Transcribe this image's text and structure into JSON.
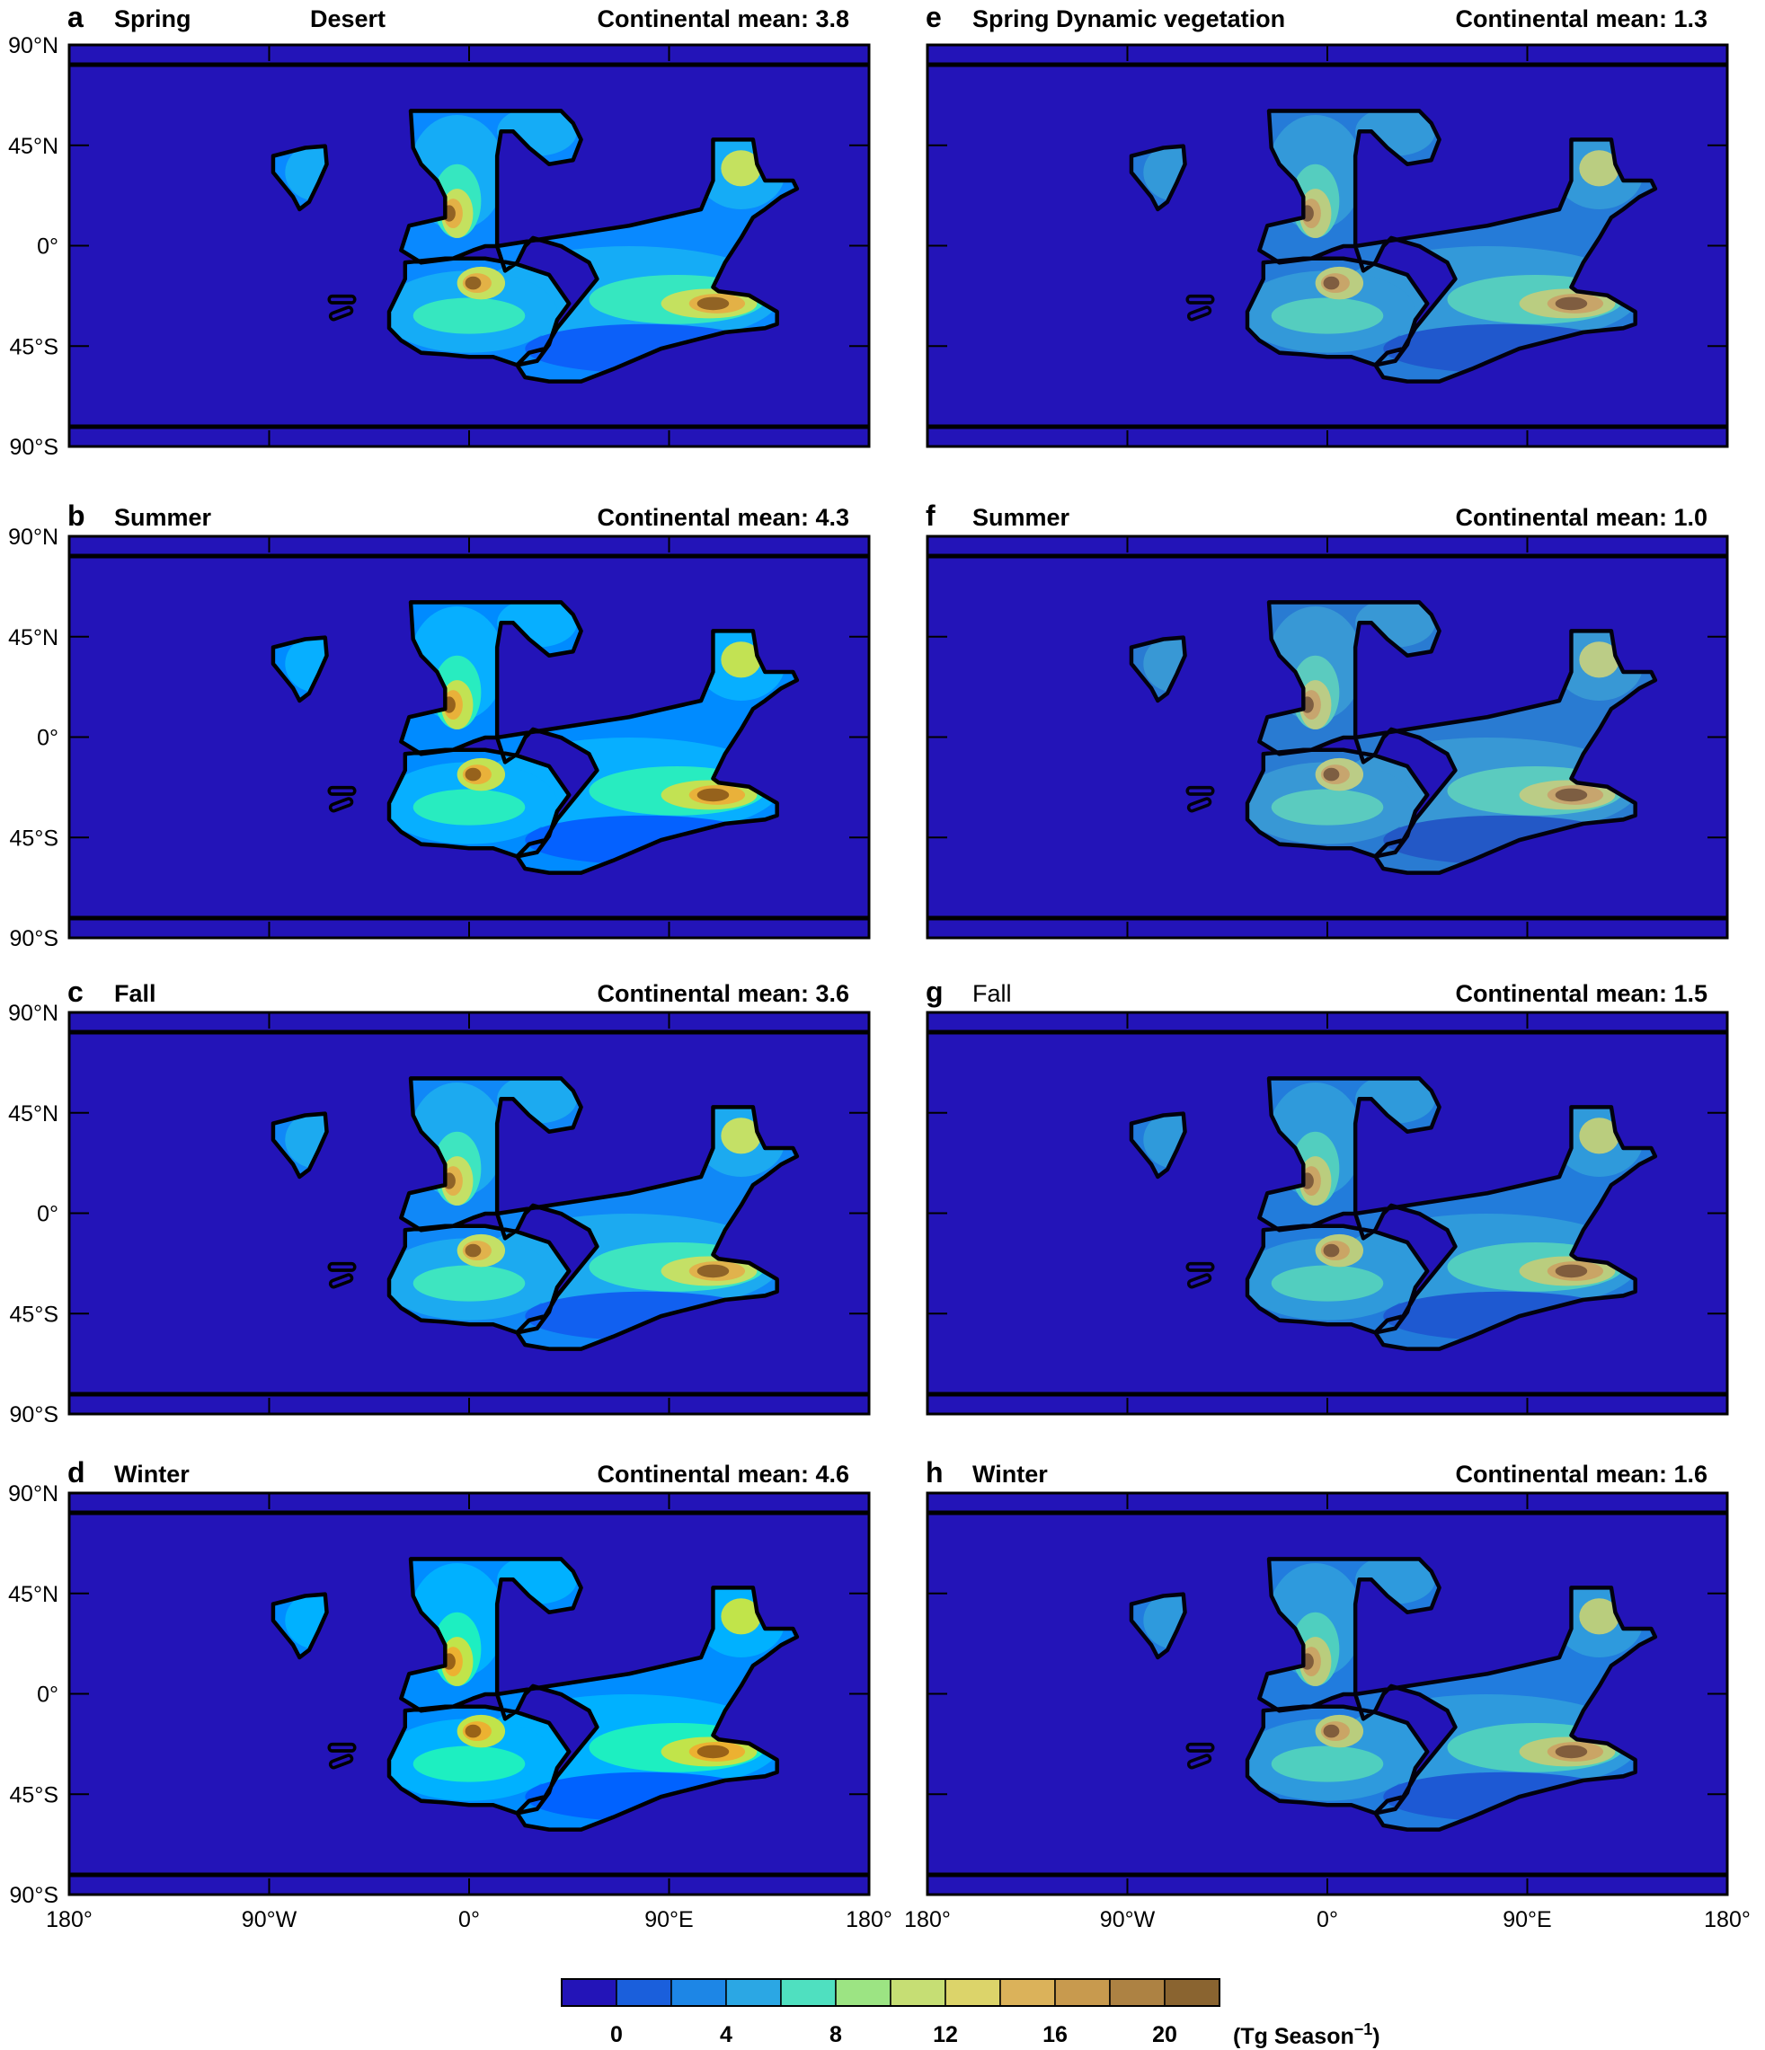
{
  "chart_data": {
    "type": "heatmap",
    "shared_axes": {
      "lat_ticks": [
        "90°N",
        "45°N",
        "0°",
        "45°S",
        "90°S"
      ],
      "lat_values": [
        90,
        45,
        0,
        -45,
        -90
      ],
      "lon_ticks": [
        "180°",
        "90°W",
        "0°",
        "90°E",
        "180°"
      ],
      "lon_values": [
        -180,
        -90,
        0,
        90,
        180
      ],
      "xlim": [
        -180,
        180
      ],
      "ylim": [
        -90,
        90
      ]
    },
    "panels": [
      {
        "letter": "a",
        "season": "Spring",
        "scenario": "Desert",
        "mean_text": "Continental mean: 3.8",
        "mean": 3.8,
        "intensity": 0.62
      },
      {
        "letter": "b",
        "season": "Summer",
        "scenario": "",
        "mean_text": "Continental mean: 4.3",
        "mean": 4.3,
        "intensity": 0.75
      },
      {
        "letter": "c",
        "season": "Fall",
        "scenario": "",
        "mean_text": "Continental mean: 3.6",
        "mean": 3.6,
        "intensity": 0.55
      },
      {
        "letter": "d",
        "season": "Winter",
        "scenario": "",
        "mean_text": "Continental mean: 4.6",
        "mean": 4.6,
        "intensity": 0.85
      },
      {
        "letter": "e",
        "season": "Spring Dynamic vegetation",
        "scenario": "",
        "mean_text": "Continental mean: 1.3",
        "mean": 1.3,
        "intensity": 0.3
      },
      {
        "letter": "f",
        "season": "Summer",
        "scenario": "",
        "mean_text": "Continental mean: 1.0",
        "mean": 1.0,
        "intensity": 0.25
      },
      {
        "letter": "g",
        "season": "Fall",
        "scenario": "",
        "mean_text": "Continental mean: 1.5",
        "mean": 1.5,
        "intensity": 0.34
      },
      {
        "letter": "h",
        "season": "Winter",
        "scenario": "",
        "mean_text": "Continental mean: 1.6",
        "mean": 1.6,
        "intensity": 0.36
      }
    ],
    "colorbar": {
      "tick_labels": [
        "0",
        "4",
        "8",
        "12",
        "16",
        "20"
      ],
      "tick_values": [
        0,
        4,
        8,
        12,
        16,
        20
      ],
      "label": "(Tg Season",
      "label_sup": "−1",
      "label_end": ")",
      "colors": [
        "#2314b8",
        "#1a5fdc",
        "#1d86e6",
        "#2ba7e4",
        "#4fe0c0",
        "#9ce483",
        "#c6de74",
        "#dcd46a",
        "#dbb25a",
        "#c89a4e",
        "#ad8243",
        "#8a6430"
      ]
    },
    "ocean_color": "#2314b8",
    "grid": false
  }
}
